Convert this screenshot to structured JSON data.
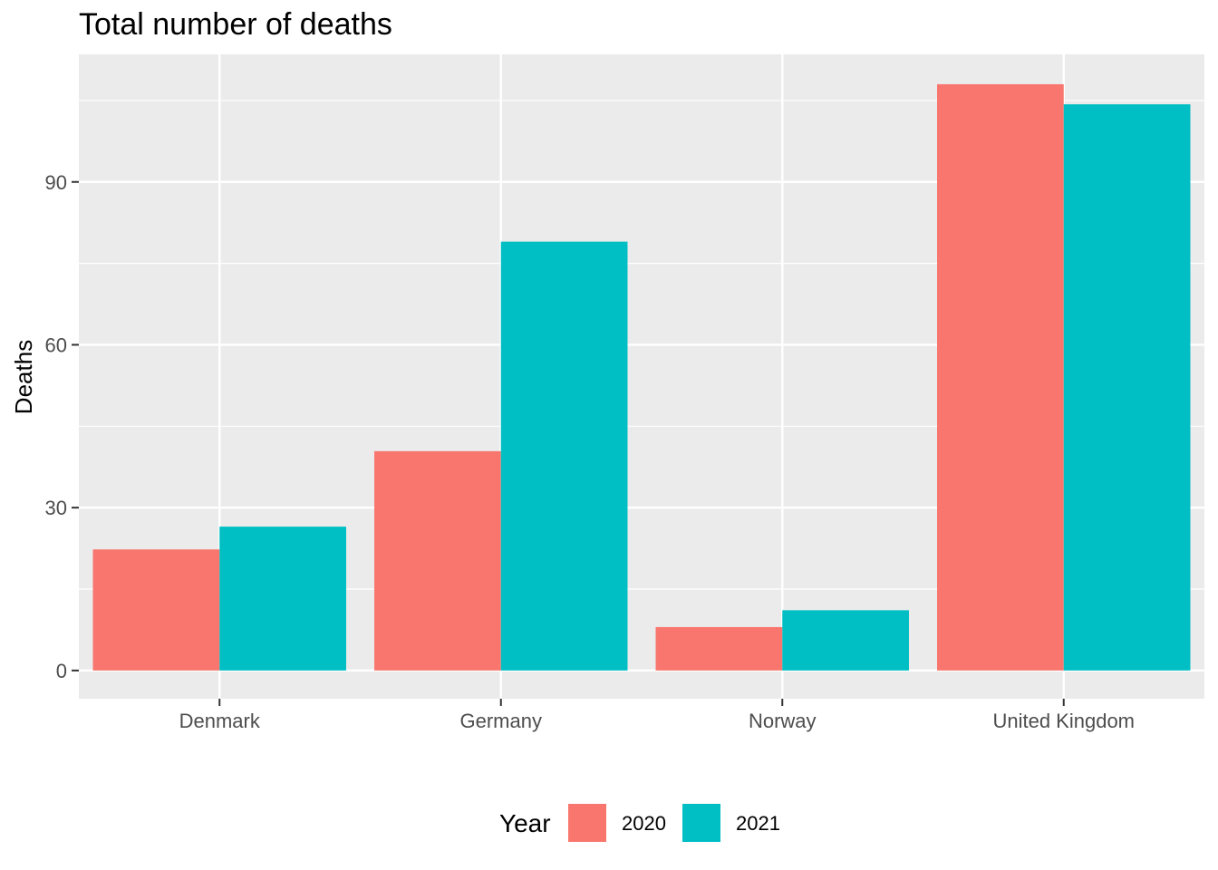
{
  "chart_data": {
    "type": "bar",
    "title": "Total number of deaths",
    "xlabel": "",
    "ylabel": "Deaths",
    "categories": [
      "Denmark",
      "Germany",
      "Norway",
      "United Kingdom"
    ],
    "series": [
      {
        "name": "2020",
        "values": [
          22.3,
          40.4,
          8.0,
          108.0
        ],
        "color": "#F8766D"
      },
      {
        "name": "2021",
        "values": [
          26.5,
          79.0,
          11.1,
          104.3
        ],
        "color": "#00BFC4"
      }
    ],
    "yticks": [
      0,
      30,
      60,
      90
    ],
    "ylim": [
      -5.2,
      113.5
    ],
    "grid": true,
    "legend": {
      "title": "Year",
      "position": "bottom"
    },
    "colors": {
      "panel_background": "#EBEBEB",
      "gridline": "#FFFFFF",
      "tick": "#333333"
    }
  }
}
